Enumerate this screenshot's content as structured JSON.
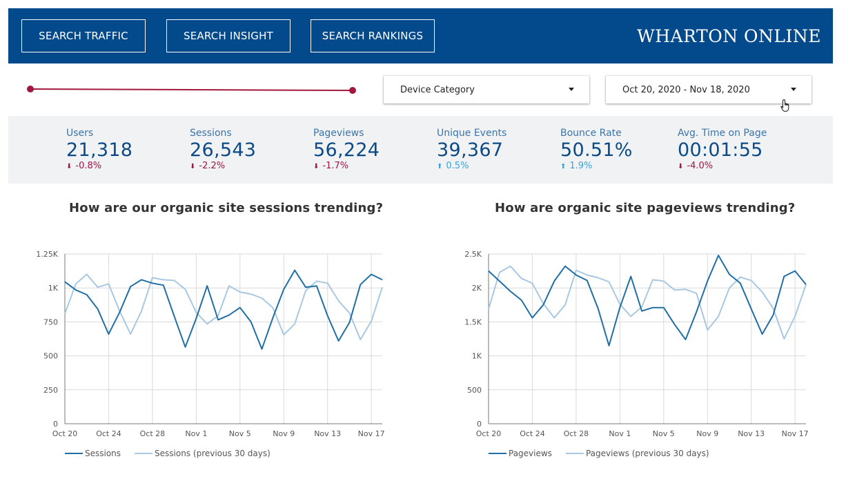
{
  "header": {
    "buttons": [
      "SEARCH TRAFFIC",
      "SEARCH INSIGHT",
      "SEARCH RANKINGS"
    ],
    "brand": "WHARTON ONLINE"
  },
  "colors": {
    "header_bg": "#034a8d",
    "slider": "#a3173f",
    "kpi_label": "#3b74a8",
    "kpi_value": "#0b4a86",
    "negative": "#9b1444",
    "positive": "#36a3e0",
    "series_current": "#1f6ea5",
    "series_previous": "#a8c8e2"
  },
  "filters": {
    "device": "Device Category",
    "date_range": "Oct 20, 2020 - Nov 18, 2020"
  },
  "kpis": [
    {
      "label": "Users",
      "value": "21,318",
      "delta": "-0.8%",
      "direction": "down"
    },
    {
      "label": "Sessions",
      "value": "26,543",
      "delta": "-2.2%",
      "direction": "down"
    },
    {
      "label": "Pageviews",
      "value": "56,224",
      "delta": "-1.7%",
      "direction": "down"
    },
    {
      "label": "Unique Events",
      "value": "39,367",
      "delta": "0.5%",
      "direction": "up"
    },
    {
      "label": "Bounce Rate",
      "value": "50.51%",
      "delta": "1.9%",
      "direction": "up"
    },
    {
      "label": "Avg. Time on Page",
      "value": "00:01:55",
      "delta": "-4.0%",
      "direction": "down"
    }
  ],
  "chart_data": [
    {
      "type": "line",
      "title": "How are our organic site sessions trending?",
      "x_ticks": [
        "Oct 20",
        "Oct 24",
        "Oct 28",
        "Nov 1",
        "Nov 5",
        "Nov 9",
        "Nov 13",
        "Nov 17"
      ],
      "y_ticks": [
        "0",
        "250",
        "500",
        "750",
        "1K",
        "1.25K"
      ],
      "ylim": [
        0,
        1250
      ],
      "x": [
        "Oct 20",
        "Oct 21",
        "Oct 22",
        "Oct 23",
        "Oct 24",
        "Oct 25",
        "Oct 26",
        "Oct 27",
        "Oct 28",
        "Oct 29",
        "Oct 30",
        "Oct 31",
        "Nov 1",
        "Nov 2",
        "Nov 3",
        "Nov 4",
        "Nov 5",
        "Nov 6",
        "Nov 7",
        "Nov 8",
        "Nov 9",
        "Nov 10",
        "Nov 11",
        "Nov 12",
        "Nov 13",
        "Nov 14",
        "Nov 15",
        "Nov 16",
        "Nov 17",
        "Nov 18"
      ],
      "series": [
        {
          "name": "Sessions",
          "values": [
            1045,
            985,
            950,
            845,
            660,
            820,
            1010,
            1060,
            1035,
            1020,
            790,
            565,
            775,
            1015,
            765,
            800,
            855,
            750,
            550,
            780,
            990,
            1130,
            1005,
            1015,
            795,
            610,
            745,
            1025,
            1100,
            1060
          ]
        },
        {
          "name": "Sessions (previous 30 days)",
          "values": [
            810,
            1030,
            1100,
            1005,
            1030,
            830,
            660,
            830,
            1075,
            1060,
            1055,
            990,
            820,
            735,
            795,
            1015,
            970,
            955,
            925,
            855,
            655,
            735,
            980,
            1050,
            1035,
            905,
            815,
            620,
            755,
            1005
          ]
        }
      ],
      "grid": true,
      "legend": "bottom-left"
    },
    {
      "type": "line",
      "title": "How are organic site pageviews trending?",
      "x_ticks": [
        "Oct 20",
        "Oct 24",
        "Oct 28",
        "Nov 1",
        "Nov 5",
        "Nov 9",
        "Nov 13",
        "Nov 17"
      ],
      "y_ticks": [
        "0",
        "500",
        "1K",
        "1.5K",
        "2K",
        "2.5K"
      ],
      "ylim": [
        0,
        2500
      ],
      "x": [
        "Oct 20",
        "Oct 21",
        "Oct 22",
        "Oct 23",
        "Oct 24",
        "Oct 25",
        "Oct 26",
        "Oct 27",
        "Oct 28",
        "Oct 29",
        "Oct 30",
        "Oct 31",
        "Nov 1",
        "Nov 2",
        "Nov 3",
        "Nov 4",
        "Nov 5",
        "Nov 6",
        "Nov 7",
        "Nov 8",
        "Nov 9",
        "Nov 10",
        "Nov 11",
        "Nov 12",
        "Nov 13",
        "Nov 14",
        "Nov 15",
        "Nov 16",
        "Nov 17",
        "Nov 18"
      ],
      "series": [
        {
          "name": "Pageviews",
          "values": [
            2250,
            2100,
            1950,
            1820,
            1560,
            1750,
            2100,
            2320,
            2190,
            2110,
            1700,
            1150,
            1710,
            2170,
            1660,
            1710,
            1710,
            1460,
            1240,
            1650,
            2100,
            2480,
            2200,
            2070,
            1690,
            1320,
            1600,
            2170,
            2250,
            2050
          ]
        },
        {
          "name": "Pageviews (previous 30 days)",
          "values": [
            1690,
            2230,
            2320,
            2140,
            2070,
            1770,
            1560,
            1750,
            2260,
            2190,
            2150,
            2090,
            1760,
            1580,
            1720,
            2120,
            2100,
            1970,
            1980,
            1920,
            1380,
            1580,
            2000,
            2160,
            2110,
            1940,
            1700,
            1250,
            1580,
            2050
          ]
        }
      ],
      "grid": true,
      "legend": "bottom-left"
    }
  ]
}
